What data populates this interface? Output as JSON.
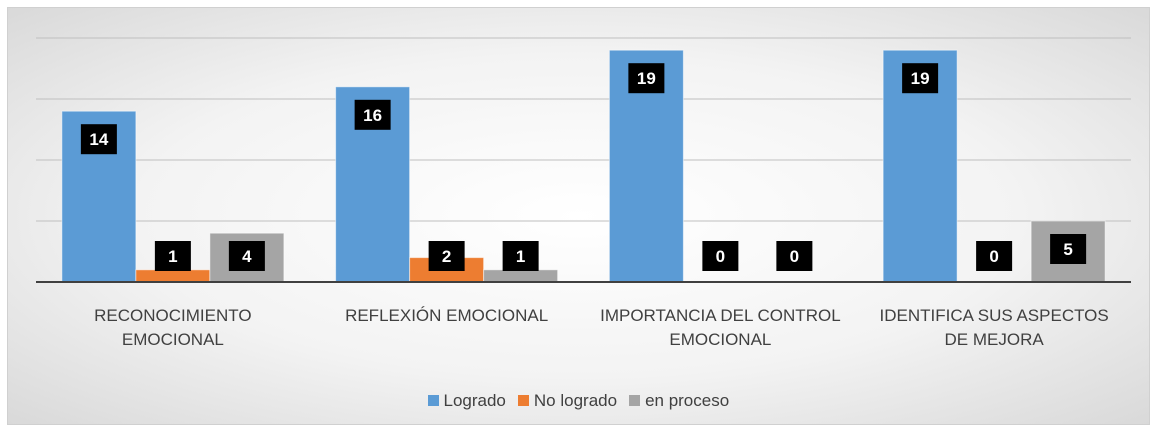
{
  "chart_data": {
    "type": "bar",
    "categories": [
      "RECONOCIMIENTO EMOCIONAL",
      "REFLEXIÓN EMOCIONAL",
      "IMPORTANCIA DEL CONTROL EMOCIONAL",
      "IDENTIFICA SUS ASPECTOS DE MEJORA"
    ],
    "series": [
      {
        "name": "Logrado",
        "color": "#5b9bd5",
        "values": [
          14,
          16,
          19,
          19
        ]
      },
      {
        "name": "No logrado",
        "color": "#ed7d31",
        "values": [
          1,
          2,
          0,
          0
        ]
      },
      {
        "name": "en proceso",
        "color": "#a5a5a5",
        "values": [
          4,
          1,
          0,
          5
        ]
      }
    ],
    "ylim": [
      0,
      20
    ],
    "yticks": [
      0,
      5,
      10,
      15,
      20
    ],
    "grid": true,
    "legend": "bottom"
  }
}
